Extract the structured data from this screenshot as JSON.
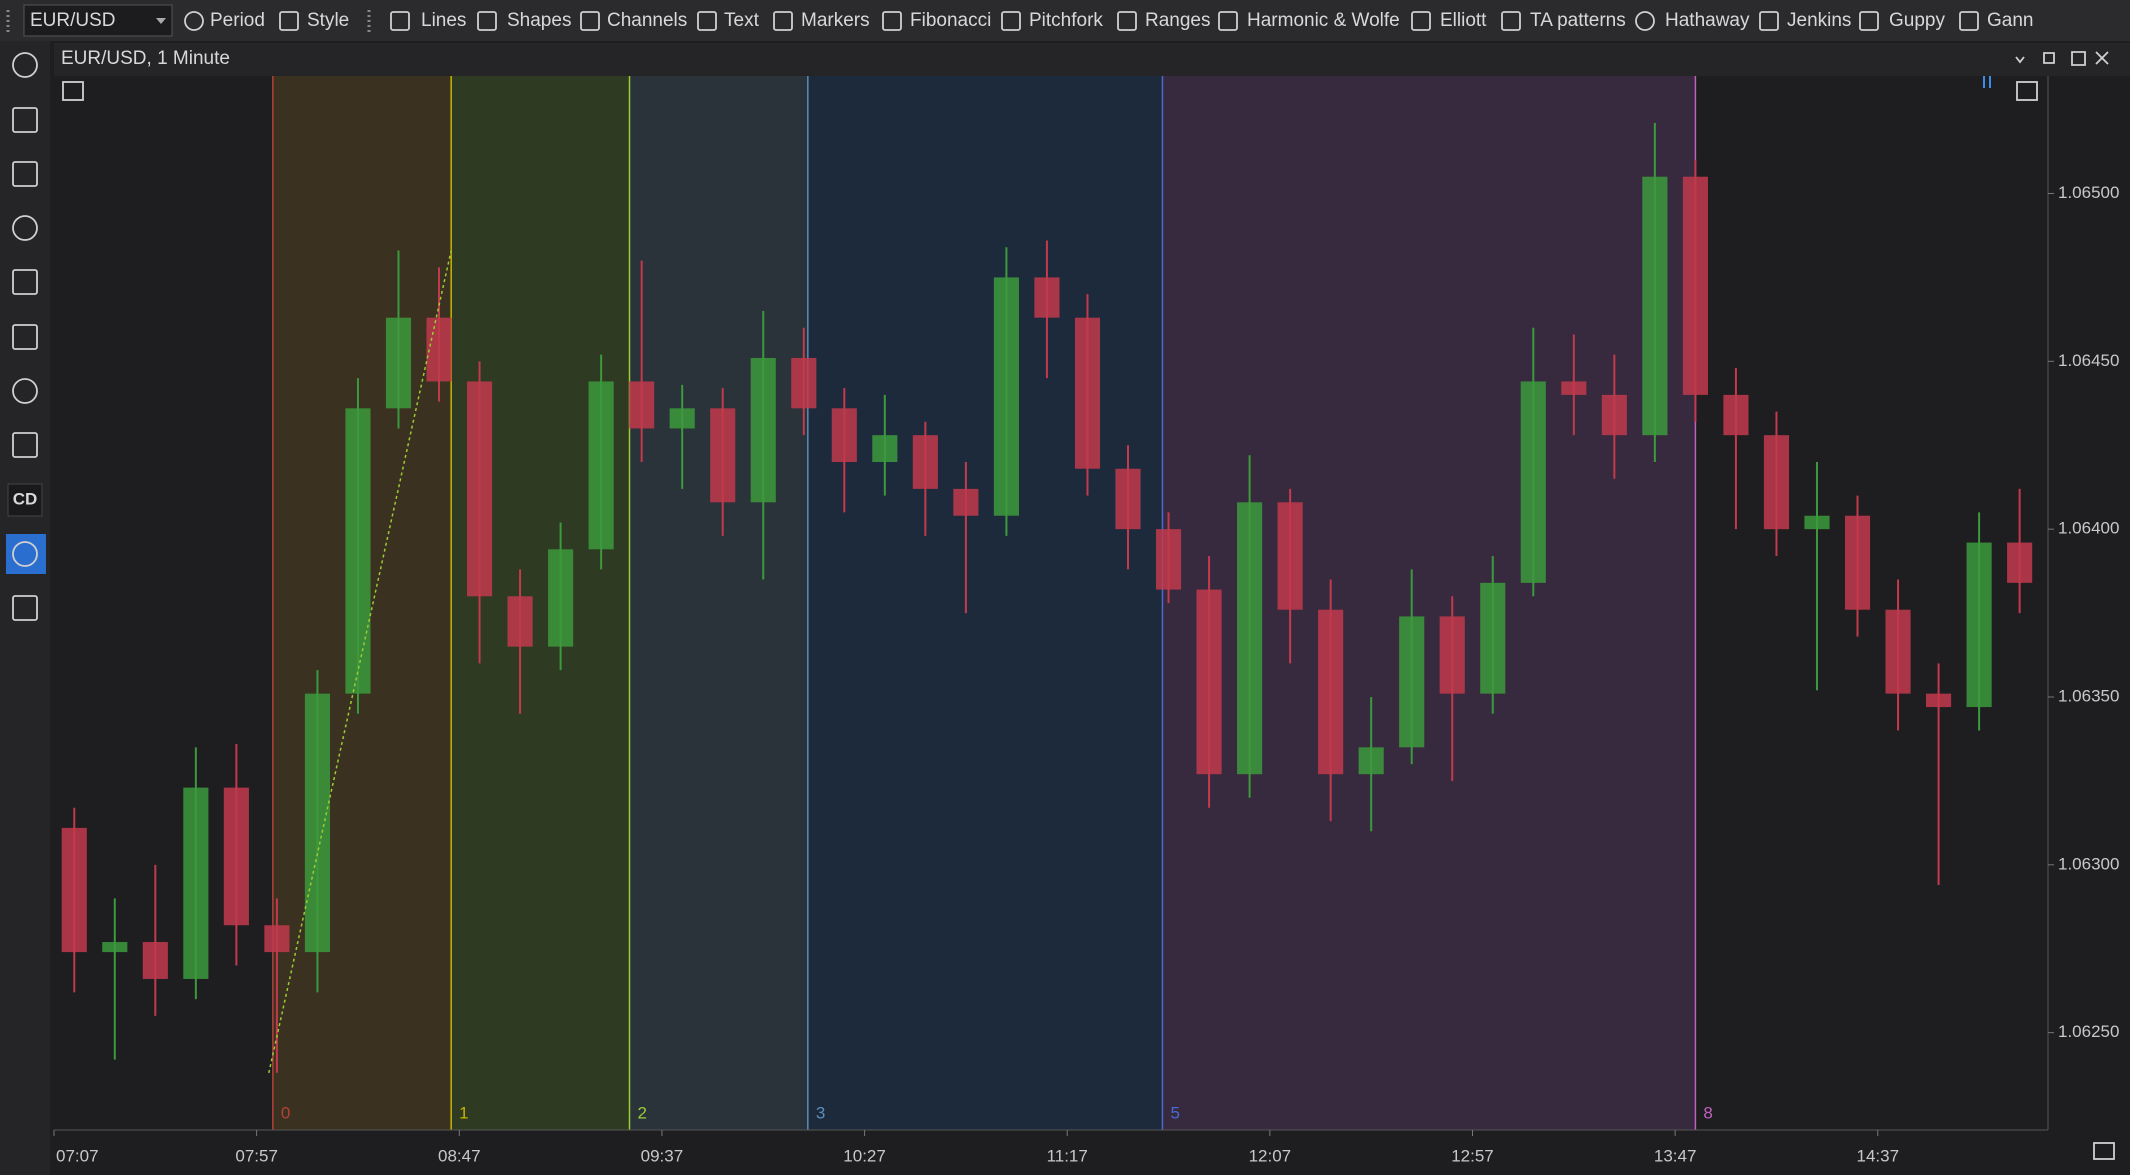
{
  "toolbar": {
    "symbol": "EUR/USD",
    "items": [
      "Period",
      "Style",
      "Lines",
      "Shapes",
      "Channels",
      "Text",
      "Markers",
      "Fibonacci",
      "Pitchfork",
      "Ranges",
      "Harmonic & Wolfe",
      "Elliott",
      "TA patterns",
      "Hathaway",
      "Jenkins",
      "Guppy",
      "Gann"
    ]
  },
  "sidebar": {
    "badge": "CD"
  },
  "window": {
    "title": "EUR/USD, 1 Minute"
  },
  "chart_data": {
    "type": "candlestick",
    "up_color": "#3c9a3c",
    "down_color": "#c23a4c",
    "x": [
      432,
      442,
      452,
      462,
      472,
      482,
      492,
      502,
      512,
      522,
      532,
      542,
      552,
      562,
      572,
      582,
      592,
      602,
      612,
      622,
      632,
      642,
      652,
      662,
      672,
      682,
      692,
      702,
      712,
      722,
      732,
      742,
      752,
      762,
      772,
      782,
      792,
      802,
      812,
      822,
      832,
      842,
      852,
      862,
      872,
      882,
      892,
      902,
      912
    ],
    "open": [
      1.06311,
      1.06274,
      1.06277,
      1.06266,
      1.06323,
      1.06282,
      1.06274,
      1.06351,
      1.06436,
      1.06463,
      1.06444,
      1.0638,
      1.06365,
      1.06394,
      1.06444,
      1.0643,
      1.06436,
      1.06408,
      1.06451,
      1.06436,
      1.0642,
      1.06428,
      1.06412,
      1.06404,
      1.06475,
      1.06463,
      1.06418,
      1.064,
      1.06382,
      1.06327,
      1.06408,
      1.06376,
      1.06327,
      1.06335,
      1.06374,
      1.06351,
      1.06384,
      1.06444,
      1.0644,
      1.06428,
      1.06505,
      1.0644,
      1.06428,
      1.064,
      1.06404,
      1.06376,
      1.06351,
      1.06347,
      1.06396
    ],
    "high": [
      1.06317,
      1.0629,
      1.063,
      1.06335,
      1.06336,
      1.0629,
      1.06358,
      1.06445,
      1.06483,
      1.06478,
      1.0645,
      1.06388,
      1.06402,
      1.06452,
      1.0648,
      1.06443,
      1.06442,
      1.06465,
      1.0646,
      1.06442,
      1.0644,
      1.06432,
      1.0642,
      1.06484,
      1.06486,
      1.0647,
      1.06425,
      1.06405,
      1.06392,
      1.06422,
      1.06412,
      1.06385,
      1.0635,
      1.06388,
      1.0638,
      1.06392,
      1.0646,
      1.06458,
      1.06452,
      1.06521,
      1.0651,
      1.06448,
      1.06435,
      1.0642,
      1.0641,
      1.06385,
      1.0636,
      1.06405,
      1.06412
    ],
    "low": [
      1.06262,
      1.06242,
      1.06255,
      1.0626,
      1.0627,
      1.06238,
      1.06262,
      1.06345,
      1.0643,
      1.06438,
      1.0636,
      1.06345,
      1.06358,
      1.06388,
      1.0642,
      1.06412,
      1.06398,
      1.06385,
      1.06428,
      1.06405,
      1.0641,
      1.06398,
      1.06375,
      1.06398,
      1.06445,
      1.0641,
      1.06388,
      1.06378,
      1.06317,
      1.0632,
      1.0636,
      1.06313,
      1.0631,
      1.0633,
      1.06325,
      1.06345,
      1.0638,
      1.06428,
      1.06415,
      1.0642,
      1.06432,
      1.064,
      1.06392,
      1.06352,
      1.06368,
      1.0634,
      1.06294,
      1.0634,
      1.06375
    ],
    "close": [
      1.06274,
      1.06277,
      1.06266,
      1.06323,
      1.06282,
      1.06274,
      1.06351,
      1.06436,
      1.06463,
      1.06444,
      1.0638,
      1.06365,
      1.06394,
      1.06444,
      1.0643,
      1.06436,
      1.06408,
      1.06451,
      1.06436,
      1.0642,
      1.06428,
      1.06412,
      1.06404,
      1.06475,
      1.06463,
      1.06418,
      1.064,
      1.06382,
      1.06327,
      1.06408,
      1.06376,
      1.06327,
      1.06335,
      1.06374,
      1.06351,
      1.06384,
      1.06444,
      1.0644,
      1.06428,
      1.06505,
      1.0644,
      1.06428,
      1.064,
      1.06404,
      1.06376,
      1.06351,
      1.06347,
      1.06396,
      1.06384
    ],
    "xlim": [
      427,
      919
    ],
    "xticks": [
      {
        "value": 427,
        "label": "07:07"
      },
      {
        "value": 477,
        "label": "07:57"
      },
      {
        "value": 527,
        "label": "08:47"
      },
      {
        "value": 577,
        "label": "09:37"
      },
      {
        "value": 627,
        "label": "10:27"
      },
      {
        "value": 677,
        "label": "11:17"
      },
      {
        "value": 727,
        "label": "12:07"
      },
      {
        "value": 777,
        "label": "12:57"
      },
      {
        "value": 827,
        "label": "13:47"
      },
      {
        "value": 877,
        "label": "14:37"
      }
    ],
    "ylim": [
      1.06221,
      1.06535
    ],
    "yticks": [
      {
        "value": 1.0625,
        "label": "1.06250"
      },
      {
        "value": 1.063,
        "label": "1.06300"
      },
      {
        "value": 1.0635,
        "label": "1.06350"
      },
      {
        "value": 1.064,
        "label": "1.06400"
      },
      {
        "value": 1.0645,
        "label": "1.06450"
      },
      {
        "value": 1.065,
        "label": "1.06500"
      }
    ],
    "trendline": {
      "x": [
        480,
        525
      ],
      "y": [
        1.06238,
        1.06483
      ],
      "color": "#9acd32"
    },
    "time_zones": [
      {
        "label": "0",
        "x": 481,
        "color": "#b5403a",
        "fill": "#3a3120"
      },
      {
        "label": "1",
        "x": 525,
        "color": "#c8b400",
        "fill": "#2e3a22"
      },
      {
        "label": "2",
        "x": 569,
        "color": "#9acd32",
        "fill": "#2a323a"
      },
      {
        "label": "3",
        "x": 613,
        "color": "#5b8db8",
        "fill": "#1d2a3c"
      },
      {
        "label": "5",
        "x": 700.5,
        "color": "#4a6ad0",
        "fill": "#372a3e"
      },
      {
        "label": "8",
        "x": 832,
        "color": "#c060c0",
        "fill": "#1e1e21"
      }
    ]
  }
}
